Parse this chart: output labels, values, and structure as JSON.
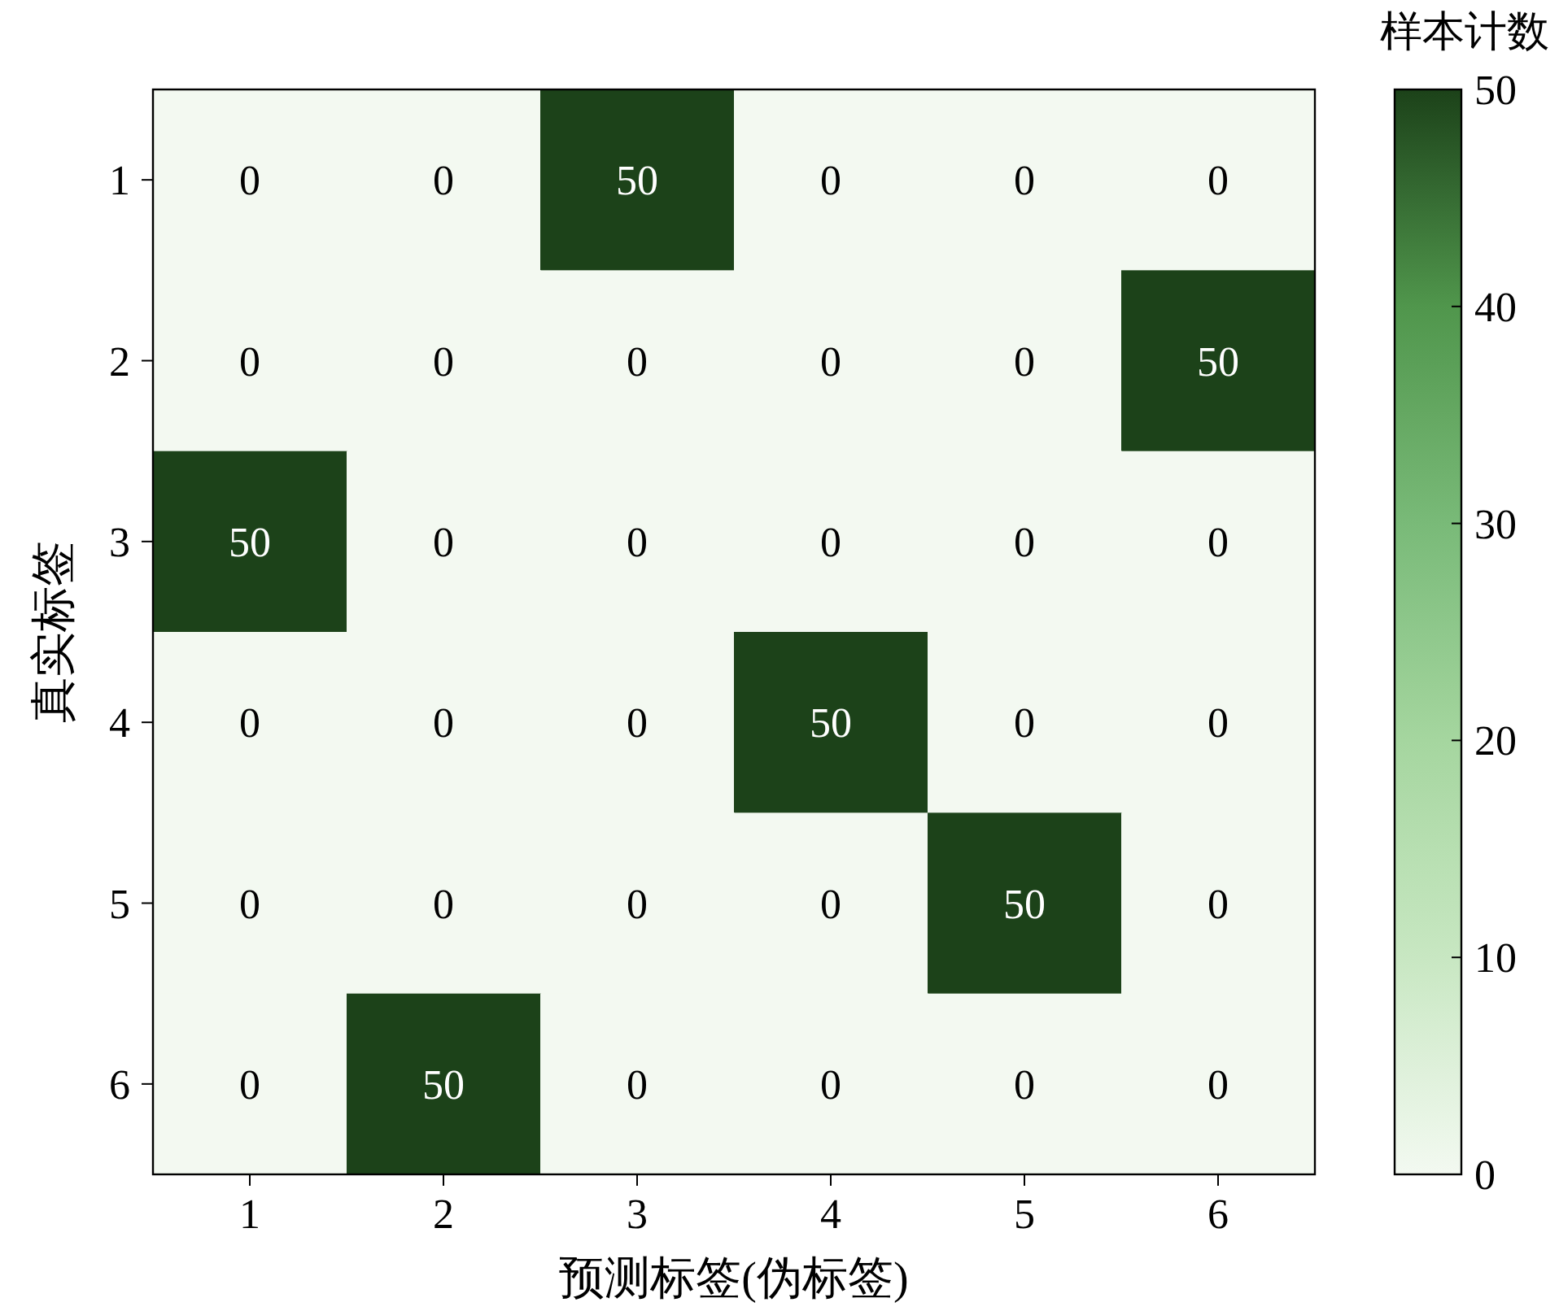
{
  "chart_data": {
    "type": "heatmap",
    "xlabel": "预测标签(伪标签)",
    "ylabel": "真实标签",
    "clabel": "样本计数",
    "categories": [
      "1",
      "2",
      "3",
      "4",
      "5",
      "6"
    ],
    "y_categories": [
      "1",
      "2",
      "3",
      "4",
      "5",
      "6"
    ],
    "cells": [
      [
        0,
        0,
        50,
        0,
        0,
        0
      ],
      [
        0,
        0,
        0,
        0,
        0,
        50
      ],
      [
        50,
        0,
        0,
        0,
        0,
        0
      ],
      [
        0,
        0,
        0,
        50,
        0,
        0
      ],
      [
        0,
        0,
        0,
        0,
        50,
        0
      ],
      [
        0,
        50,
        0,
        0,
        0,
        0
      ]
    ],
    "clim": [
      0,
      50
    ],
    "cticks": [
      0,
      10,
      20,
      30,
      40,
      50
    ],
    "data_labels": true
  }
}
